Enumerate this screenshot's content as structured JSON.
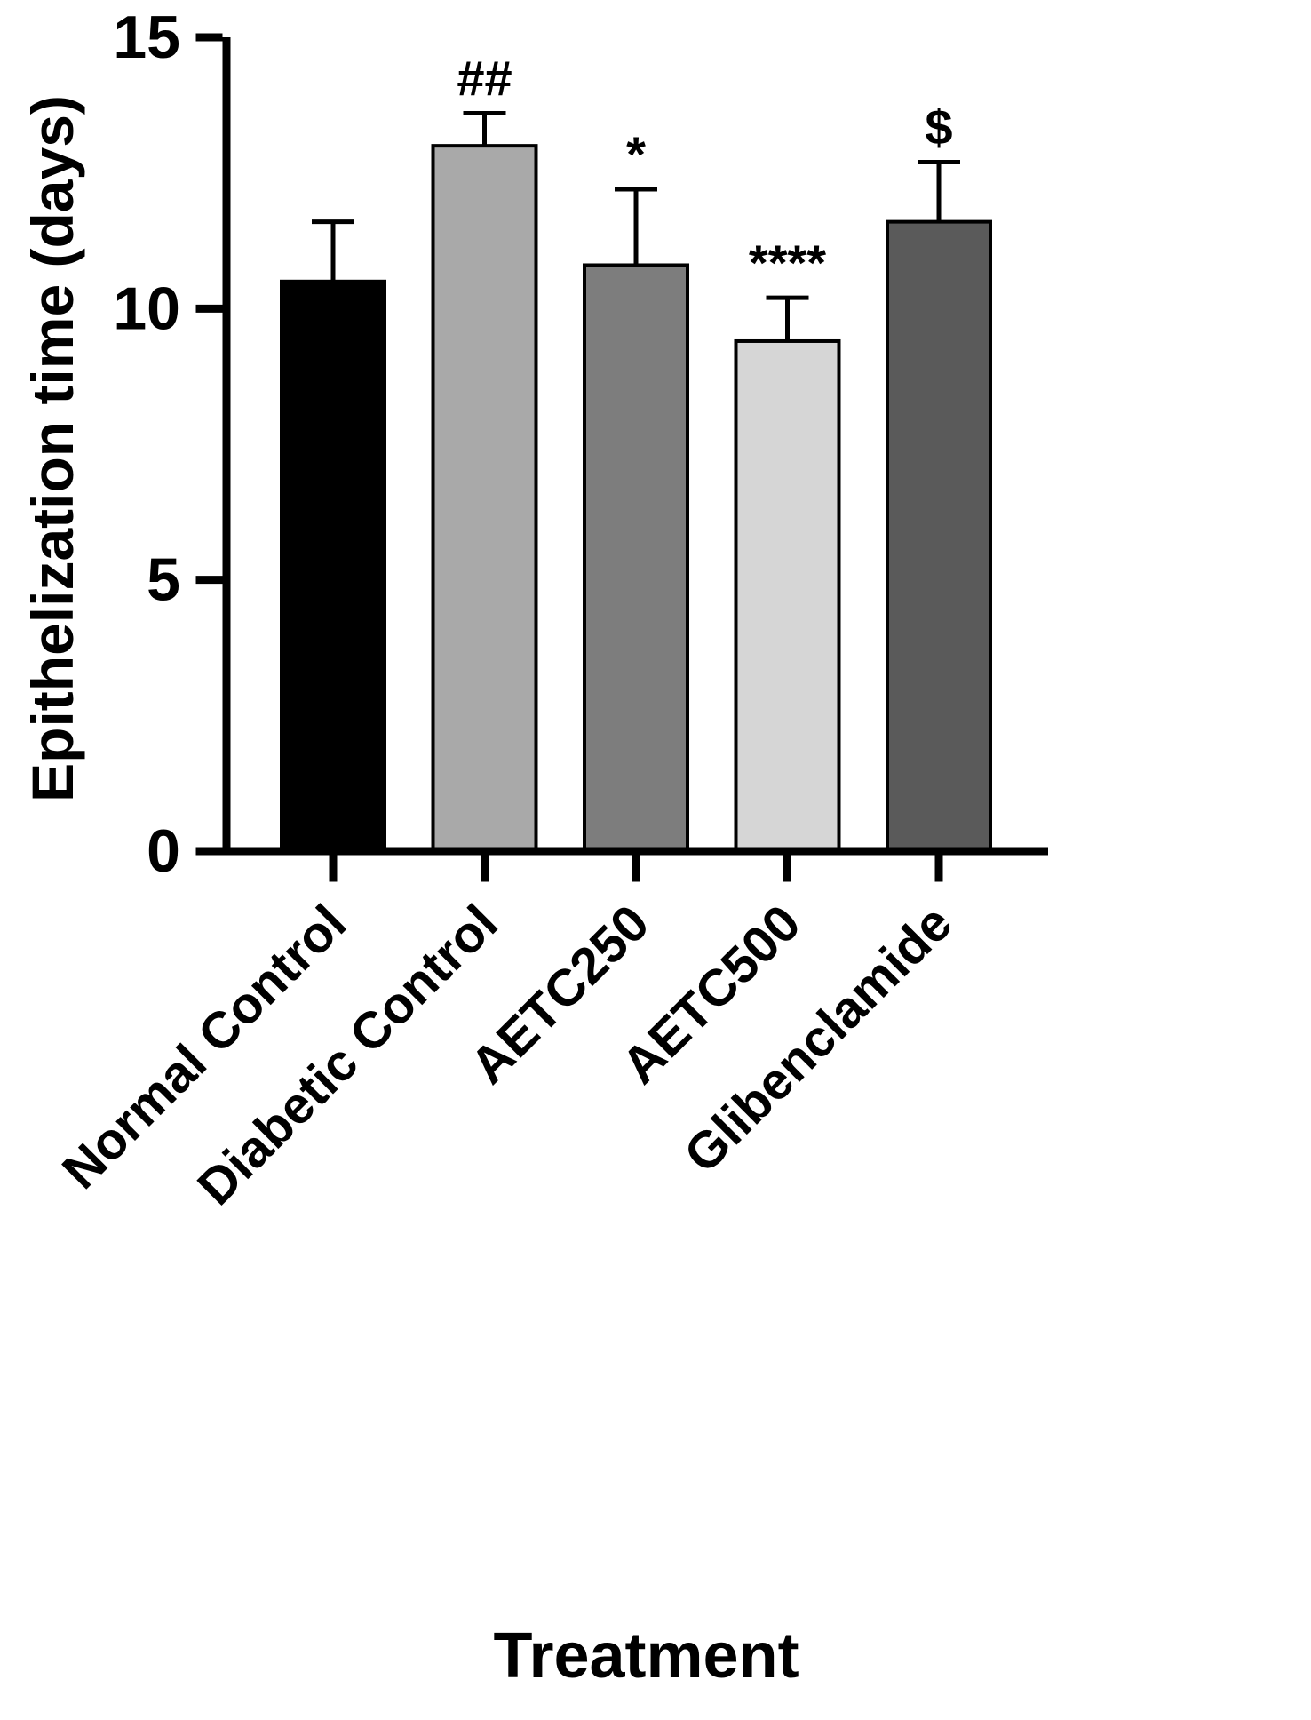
{
  "chart_data": {
    "type": "bar",
    "title": "",
    "xlabel": "Treatment",
    "ylabel": "Epithelization time (days)",
    "ylim": [
      0,
      15
    ],
    "yticks": [
      0,
      5,
      10,
      15
    ],
    "categories": [
      "Normal Control",
      "Diabetic Control",
      "AETC250",
      "AETC500",
      "Glibenclamide"
    ],
    "values": [
      10.5,
      13.0,
      10.8,
      9.4,
      11.6
    ],
    "errors_plus": [
      1.1,
      0.6,
      1.4,
      0.8,
      1.1
    ],
    "annotations": [
      "",
      "##",
      "*",
      "****",
      "$"
    ],
    "bar_colors": [
      "#000000",
      "#a9a9a9",
      "#7d7d7d",
      "#d6d6d6",
      "#5a5a5a"
    ],
    "bar_edge_color": "#000000",
    "axis_color": "#000000",
    "grid": false,
    "legend": null
  }
}
